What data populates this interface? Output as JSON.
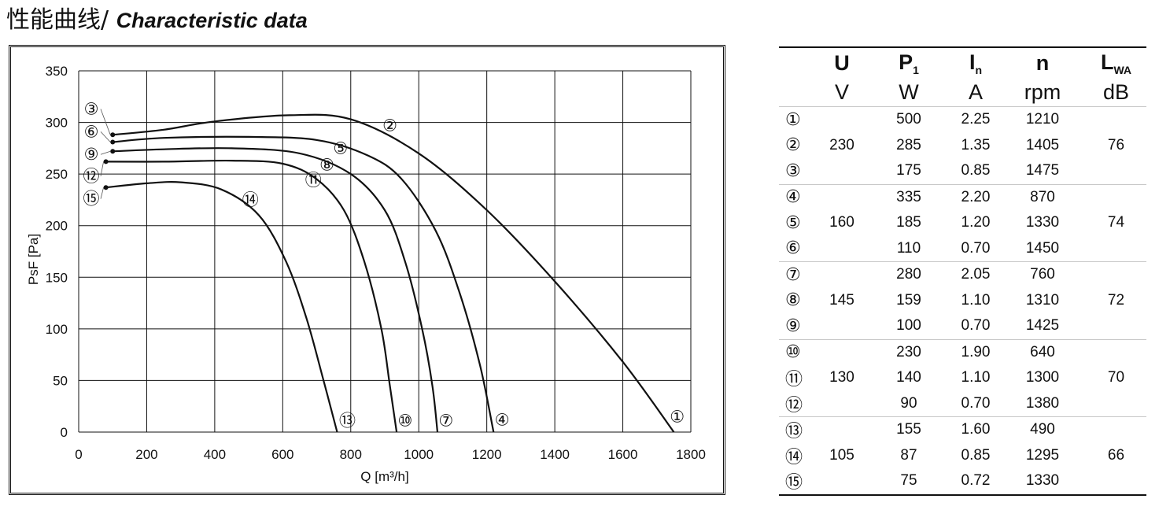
{
  "title": {
    "chinese": "性能曲线/ ",
    "english": "Characteristic data"
  },
  "chart_data": {
    "type": "line",
    "xlabel": "Q [m³/h]",
    "ylabel": "PsF [Pa]",
    "xlim": [
      0,
      1800
    ],
    "ylim": [
      0,
      350
    ],
    "xticks": [
      "0",
      "200",
      "400",
      "600",
      "800",
      "1000",
      "1200",
      "1400",
      "1600",
      "1800"
    ],
    "yticks": [
      "0",
      "50",
      "100",
      "150",
      "200",
      "250",
      "300",
      "350"
    ],
    "grid": true,
    "series": [
      {
        "name": "①",
        "points": [
          [
            100,
            288
          ],
          [
            250,
            293
          ],
          [
            400,
            301
          ],
          [
            620,
            307
          ],
          [
            800,
            303
          ],
          [
            1000,
            270
          ],
          [
            1200,
            215
          ],
          [
            1400,
            146
          ],
          [
            1600,
            68
          ],
          [
            1750,
            0
          ]
        ]
      },
      {
        "name": "②",
        "points": [
          [
            100,
            288
          ],
          [
            250,
            293
          ],
          [
            400,
            301
          ],
          [
            620,
            307
          ],
          [
            800,
            303
          ],
          [
            1000,
            270
          ],
          [
            1200,
            215
          ],
          [
            1400,
            146
          ],
          [
            1600,
            68
          ],
          [
            1750,
            0
          ]
        ]
      },
      {
        "name": "③",
        "points": [
          [
            100,
            288
          ],
          [
            250,
            293
          ],
          [
            400,
            301
          ],
          [
            620,
            307
          ],
          [
            800,
            303
          ],
          [
            1000,
            270
          ],
          [
            1200,
            215
          ],
          [
            1400,
            146
          ],
          [
            1600,
            68
          ],
          [
            1750,
            0
          ]
        ]
      },
      {
        "name": "④",
        "points": [
          [
            100,
            281
          ],
          [
            250,
            285
          ],
          [
            500,
            286
          ],
          [
            700,
            283
          ],
          [
            850,
            268
          ],
          [
            950,
            245
          ],
          [
            1050,
            195
          ],
          [
            1120,
            135
          ],
          [
            1180,
            65
          ],
          [
            1220,
            0
          ]
        ]
      },
      {
        "name": "⑤",
        "points": [
          [
            100,
            281
          ],
          [
            250,
            285
          ],
          [
            500,
            286
          ],
          [
            700,
            283
          ],
          [
            850,
            268
          ],
          [
            950,
            245
          ],
          [
            1050,
            195
          ],
          [
            1120,
            135
          ],
          [
            1180,
            65
          ],
          [
            1220,
            0
          ]
        ]
      },
      {
        "name": "⑥",
        "points": [
          [
            100,
            281
          ],
          [
            250,
            285
          ],
          [
            500,
            286
          ],
          [
            700,
            283
          ],
          [
            850,
            268
          ],
          [
            950,
            245
          ],
          [
            1050,
            195
          ],
          [
            1120,
            135
          ],
          [
            1180,
            65
          ],
          [
            1220,
            0
          ]
        ]
      },
      {
        "name": "⑦",
        "points": [
          [
            100,
            272
          ],
          [
            250,
            274
          ],
          [
            450,
            275
          ],
          [
            650,
            270
          ],
          [
            800,
            250
          ],
          [
            900,
            215
          ],
          [
            960,
            165
          ],
          [
            1010,
            100
          ],
          [
            1040,
            45
          ],
          [
            1055,
            0
          ]
        ]
      },
      {
        "name": "⑧",
        "points": [
          [
            100,
            272
          ],
          [
            250,
            274
          ],
          [
            450,
            275
          ],
          [
            650,
            270
          ],
          [
            800,
            250
          ],
          [
            900,
            215
          ],
          [
            960,
            165
          ],
          [
            1010,
            100
          ],
          [
            1040,
            45
          ],
          [
            1055,
            0
          ]
        ]
      },
      {
        "name": "⑨",
        "points": [
          [
            100,
            272
          ],
          [
            250,
            274
          ],
          [
            450,
            275
          ],
          [
            650,
            270
          ],
          [
            800,
            250
          ],
          [
            900,
            215
          ],
          [
            960,
            165
          ],
          [
            1010,
            100
          ],
          [
            1040,
            45
          ],
          [
            1055,
            0
          ]
        ]
      },
      {
        "name": "⑩",
        "points": [
          [
            80,
            262
          ],
          [
            250,
            262
          ],
          [
            450,
            263
          ],
          [
            600,
            260
          ],
          [
            700,
            245
          ],
          [
            780,
            215
          ],
          [
            840,
            165
          ],
          [
            890,
            100
          ],
          [
            915,
            45
          ],
          [
            935,
            0
          ]
        ]
      },
      {
        "name": "⑪",
        "points": [
          [
            80,
            262
          ],
          [
            250,
            262
          ],
          [
            450,
            263
          ],
          [
            600,
            260
          ],
          [
            700,
            245
          ],
          [
            780,
            215
          ],
          [
            840,
            165
          ],
          [
            890,
            100
          ],
          [
            915,
            45
          ],
          [
            935,
            0
          ]
        ]
      },
      {
        "name": "⑫",
        "points": [
          [
            80,
            262
          ],
          [
            250,
            262
          ],
          [
            450,
            263
          ],
          [
            600,
            260
          ],
          [
            700,
            245
          ],
          [
            780,
            215
          ],
          [
            840,
            165
          ],
          [
            890,
            100
          ],
          [
            915,
            45
          ],
          [
            935,
            0
          ]
        ]
      },
      {
        "name": "⑬",
        "points": [
          [
            80,
            237
          ],
          [
            200,
            241
          ],
          [
            300,
            242
          ],
          [
            420,
            235
          ],
          [
            530,
            210
          ],
          [
            610,
            165
          ],
          [
            670,
            110
          ],
          [
            720,
            50
          ],
          [
            760,
            0
          ]
        ]
      },
      {
        "name": "⑭",
        "points": [
          [
            80,
            237
          ],
          [
            200,
            241
          ],
          [
            300,
            242
          ],
          [
            420,
            235
          ],
          [
            530,
            210
          ],
          [
            610,
            165
          ],
          [
            670,
            110
          ],
          [
            720,
            50
          ],
          [
            760,
            0
          ]
        ]
      },
      {
        "name": "⑮",
        "points": [
          [
            80,
            237
          ],
          [
            200,
            241
          ],
          [
            300,
            242
          ],
          [
            420,
            235
          ],
          [
            530,
            210
          ],
          [
            610,
            165
          ],
          [
            670,
            110
          ],
          [
            720,
            50
          ],
          [
            760,
            0
          ]
        ]
      }
    ],
    "curve_labels": [
      {
        "text": "②",
        "x": 915,
        "y": 297
      },
      {
        "text": "⑤",
        "x": 770,
        "y": 275
      },
      {
        "text": "⑧",
        "x": 730,
        "y": 259
      },
      {
        "text": "⑪",
        "x": 690,
        "y": 244
      },
      {
        "text": "⑭",
        "x": 505,
        "y": 225
      },
      {
        "text": "①",
        "x": 1760,
        "y": 15
      },
      {
        "text": "④",
        "x": 1245,
        "y": 12
      },
      {
        "text": "⑦",
        "x": 1080,
        "y": 11
      },
      {
        "text": "⑩",
        "x": 960,
        "y": 11
      },
      {
        "text": "⑬",
        "x": 790,
        "y": 11
      }
    ],
    "start_labels": [
      {
        "text": "③",
        "y": 313,
        "start": [
          100,
          288
        ]
      },
      {
        "text": "⑥",
        "y": 291,
        "start": [
          100,
          281
        ]
      },
      {
        "text": "⑨",
        "y": 269,
        "start": [
          100,
          272
        ]
      },
      {
        "text": "⑫",
        "y": 248,
        "start": [
          80,
          262
        ]
      },
      {
        "text": "⑮",
        "y": 226,
        "start": [
          80,
          237
        ]
      }
    ]
  },
  "table": {
    "headers": [
      {
        "main": "U",
        "sub": "",
        "unit": "V"
      },
      {
        "main": "P",
        "sub": "1",
        "unit": "W"
      },
      {
        "main": "I",
        "sub": "n",
        "unit": "A"
      },
      {
        "main": "n",
        "sub": "",
        "unit": "rpm"
      },
      {
        "main": "L",
        "sub": "WA",
        "unit": "dB"
      }
    ],
    "groups": [
      {
        "U": "230",
        "LWA": "76",
        "rows": [
          {
            "id": "①",
            "P1": "500",
            "In": "2.25",
            "n": "1210"
          },
          {
            "id": "②",
            "P1": "285",
            "In": "1.35",
            "n": "1405"
          },
          {
            "id": "③",
            "P1": "175",
            "In": "0.85",
            "n": "1475"
          }
        ]
      },
      {
        "U": "160",
        "LWA": "74",
        "rows": [
          {
            "id": "④",
            "P1": "335",
            "In": "2.20",
            "n": "870"
          },
          {
            "id": "⑤",
            "P1": "185",
            "In": "1.20",
            "n": "1330"
          },
          {
            "id": "⑥",
            "P1": "110",
            "In": "0.70",
            "n": "1450"
          }
        ]
      },
      {
        "U": "145",
        "LWA": "72",
        "rows": [
          {
            "id": "⑦",
            "P1": "280",
            "In": "2.05",
            "n": "760"
          },
          {
            "id": "⑧",
            "P1": "159",
            "In": "1.10",
            "n": "1310"
          },
          {
            "id": "⑨",
            "P1": "100",
            "In": "0.70",
            "n": "1425"
          }
        ]
      },
      {
        "U": "130",
        "LWA": "70",
        "rows": [
          {
            "id": "⑩",
            "P1": "230",
            "In": "1.90",
            "n": "640"
          },
          {
            "id": "⑪",
            "P1": "140",
            "In": "1.10",
            "n": "1300"
          },
          {
            "id": "⑫",
            "P1": "90",
            "In": "0.70",
            "n": "1380"
          }
        ]
      },
      {
        "U": "105",
        "LWA": "66",
        "rows": [
          {
            "id": "⑬",
            "P1": "155",
            "In": "1.60",
            "n": "490"
          },
          {
            "id": "⑭",
            "P1": "87",
            "In": "0.85",
            "n": "1295"
          },
          {
            "id": "⑮",
            "P1": "75",
            "In": "0.72",
            "n": "1330"
          }
        ]
      }
    ]
  }
}
